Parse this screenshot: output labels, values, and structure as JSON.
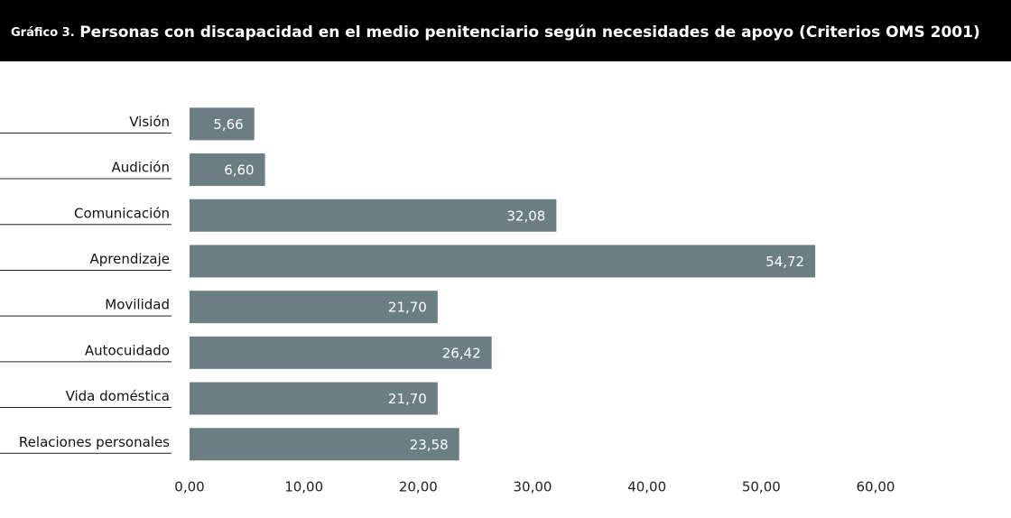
{
  "chart_data": {
    "type": "bar",
    "orientation": "horizontal",
    "title_prefix": "Gráfico 3.",
    "title": "Personas con discapacidad en el medio penitenciario según necesidades de apoyo (Criterios OMS 2001)",
    "categories": [
      "Visión",
      "Audición",
      "Comunicación",
      "Aprendizaje",
      "Movilidad",
      "Autocuidado",
      "Vida doméstica",
      "Relaciones personales"
    ],
    "values": [
      5.66,
      6.6,
      32.08,
      54.72,
      21.7,
      26.42,
      21.7,
      23.58
    ],
    "value_labels": [
      "5,66",
      "6,60",
      "32,08",
      "54,72",
      "21,70",
      "26,42",
      "21,70",
      "23,58"
    ],
    "color": "#6b7f82",
    "xlim": [
      0,
      60
    ],
    "xticks": [
      {
        "value": 0,
        "label": "0,00"
      },
      {
        "value": 10,
        "label": "10,00"
      },
      {
        "value": 20,
        "label": "20,00"
      },
      {
        "value": 30,
        "label": "30,00"
      },
      {
        "value": 40,
        "label": "40,00"
      },
      {
        "value": 50,
        "label": "50,00"
      },
      {
        "value": 60,
        "label": "60,00"
      }
    ],
    "grid": false
  }
}
